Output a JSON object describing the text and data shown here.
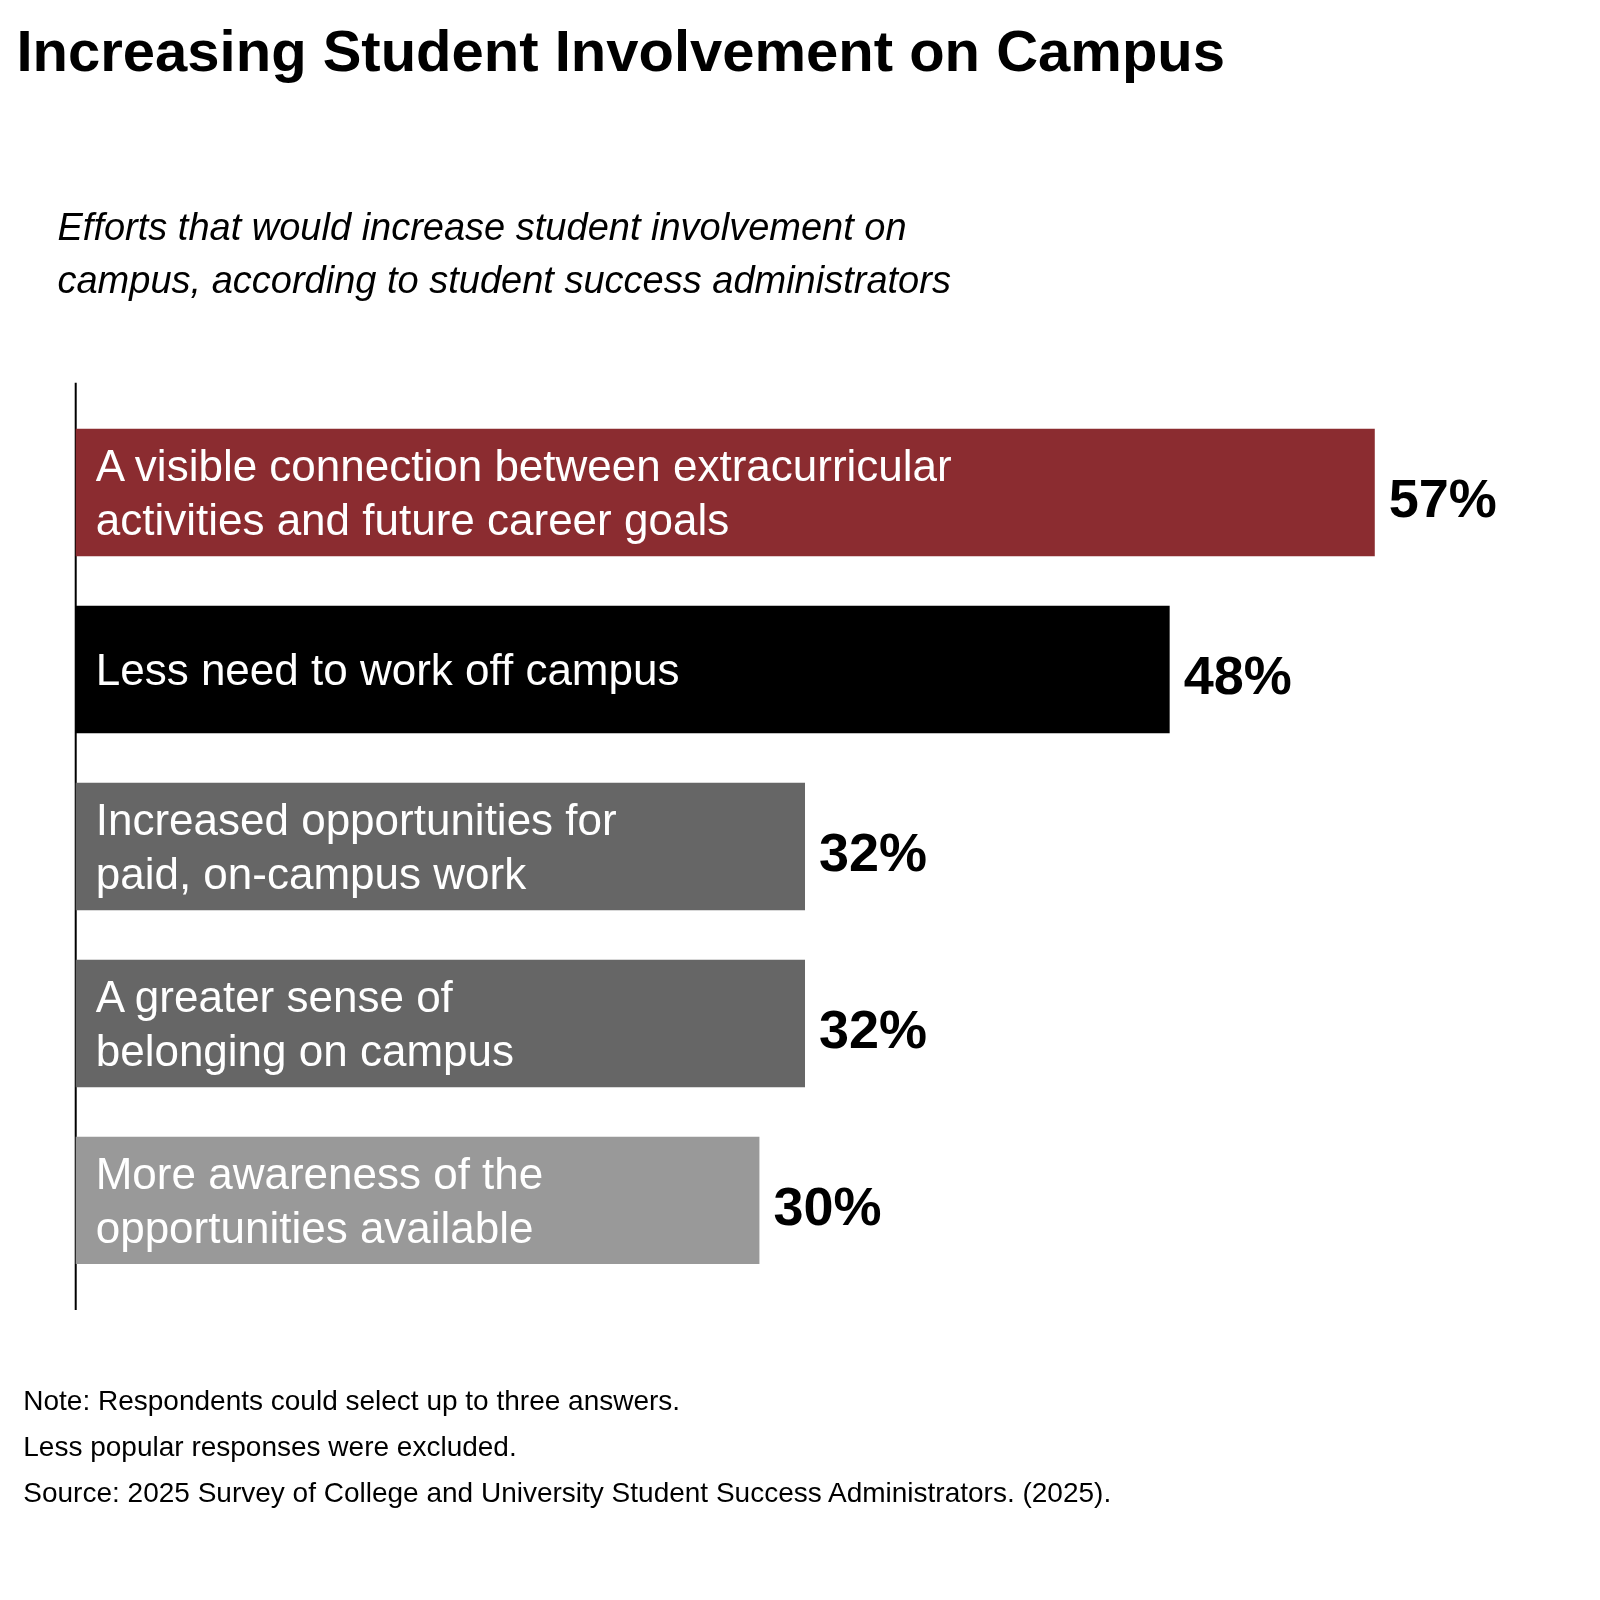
{
  "chart_data": {
    "type": "bar",
    "orientation": "horizontal",
    "title": "Increasing Student Involvement on Campus",
    "subtitle": "Efforts that would increase student involvement on campus, according to student success administrators",
    "categories": [
      "A visible connection between extracurricular activities and future career goals",
      "Less need to work off campus",
      "Increased opportunities for paid, on-campus work",
      "A greater sense of belonging on campus",
      "More awareness of the opportunities available"
    ],
    "values": [
      57,
      48,
      32,
      32,
      30
    ],
    "colors": [
      "#8b2c30",
      "#000000",
      "#666666",
      "#666666",
      "#999999"
    ],
    "value_labels": [
      "57%",
      "48%",
      "32%",
      "32%",
      "30%"
    ],
    "tick_labels": false,
    "annotations": [
      "Note: Respondents could select up to three answers.",
      "Less popular responses were excluded.",
      "Source: 2025 Survey of College and University Student Success Administrators. (2025)."
    ]
  }
}
